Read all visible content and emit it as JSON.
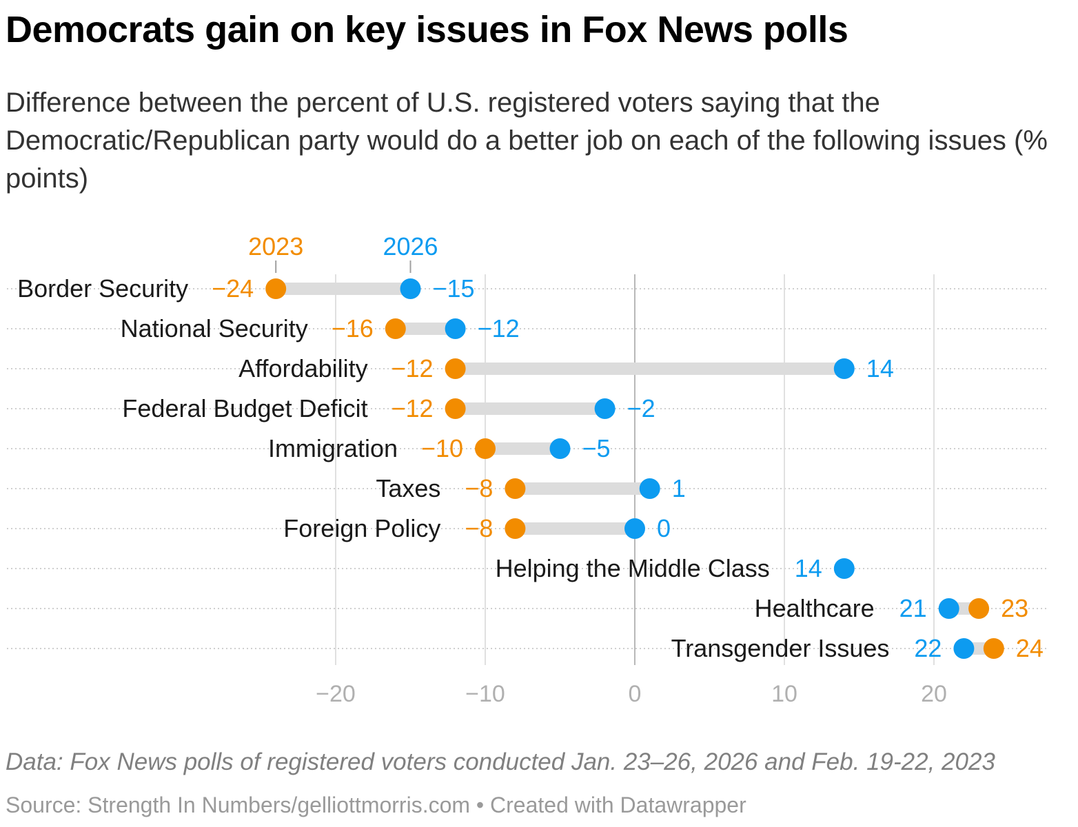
{
  "header": {
    "title": "Democrats gain on key issues in Fox News polls",
    "subtitle": "Difference between the percent of U.S. registered voters saying that the Democratic/Republican party would do a better job on each of the following issues (% points)"
  },
  "footer": {
    "notes": "Data: Fox News polls of registered voters conducted Jan. 23–26, 2026 and Feb. 19-22, 2023",
    "source": "Source: Strength In Numbers/gelliottmorris.com",
    "byline": " • Created with Datawrapper"
  },
  "colors": {
    "y2023": "#f28c00",
    "y2026": "#0d9bf0",
    "connector": "#dcdcdc",
    "grid": "#e0e0e0",
    "zero": "#b8b8b8",
    "tick": "#b0b0b0"
  },
  "chart_data": {
    "type": "dot-plot",
    "series": [
      {
        "name": "2023",
        "values": [
          -24,
          -16,
          -12,
          -12,
          -10,
          -8,
          -8,
          null,
          23,
          24
        ]
      },
      {
        "name": "2026",
        "values": [
          -15,
          -12,
          14,
          -2,
          -5,
          1,
          0,
          14,
          21,
          22
        ]
      }
    ],
    "categories": [
      "Border Security",
      "National Security",
      "Affordability",
      "Federal Budget Deficit",
      "Immigration",
      "Taxes",
      "Foreign Policy",
      "Helping the Middle Class",
      "Healthcare",
      "Transgender Issues"
    ],
    "x_ticks": [
      -20,
      -10,
      0,
      10,
      20
    ],
    "x_tick_labels": [
      "−20",
      "−10",
      "0",
      "10",
      "20"
    ],
    "xlim": [
      -30,
      27.5
    ],
    "legend": "labels above first row",
    "grid": true
  }
}
